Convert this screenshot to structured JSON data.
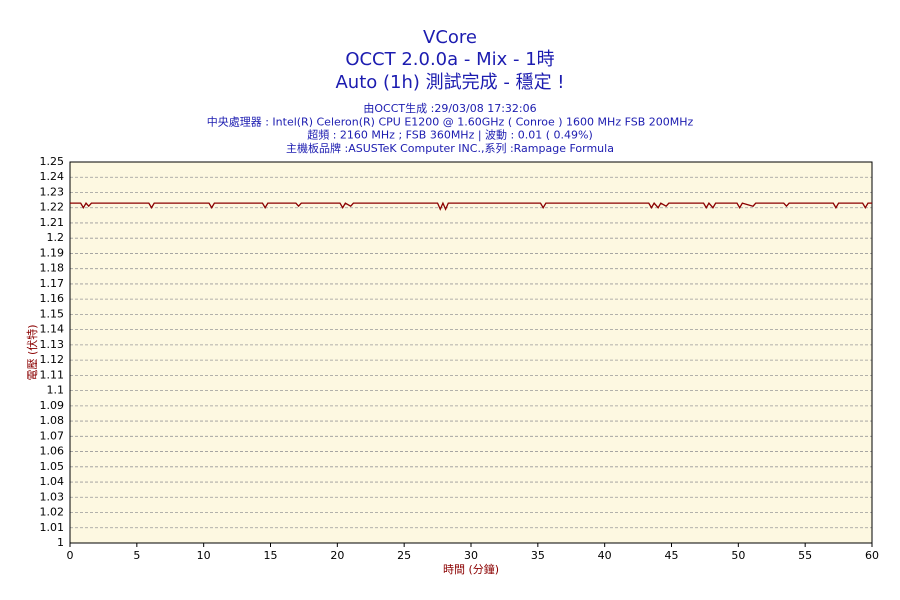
{
  "chart_data": {
    "type": "line",
    "title": "VCore",
    "title_lines": [
      "OCCT 2.0.0a - Mix - 1時",
      "Auto (1h) 測試完成 - 穩定 !"
    ],
    "subtitle_lines": [
      "由OCCT生成 :29/03/08 17:32:06",
      "中央處理器 : Intel(R) Celeron(R) CPU E1200 @ 1.60GHz ( Conroe ) 1600 MHz FSB 200MHz",
      "超頻 : 2160 MHz ; FSB 360MHz | 波動 : 0.01 ( 0.49%)",
      "主機板品牌 :ASUSTeK Computer INC.,系列 :Rampage Formula"
    ],
    "x_label": "時間 (分鐘)",
    "y_label": "電壓 (伏特)",
    "xlim": [
      0,
      60
    ],
    "xticks": [
      0,
      5,
      10,
      15,
      20,
      25,
      30,
      35,
      40,
      45,
      50,
      55,
      60
    ],
    "ylim": [
      1,
      1.25
    ],
    "yticks": [
      1,
      1.01,
      1.02,
      1.03,
      1.04,
      1.05,
      1.06,
      1.07,
      1.08,
      1.09,
      1.1,
      1.11,
      1.12,
      1.13,
      1.14,
      1.15,
      1.16,
      1.17,
      1.18,
      1.19,
      1.2,
      1.21,
      1.22,
      1.23,
      1.24,
      1.25
    ],
    "grid": true,
    "series": [
      {
        "color": "#8b0000",
        "x": [
          0,
          0.8,
          1,
          1.2,
          1.4,
          1.6,
          5.9,
          6.1,
          6.3,
          10.4,
          10.6,
          10.8,
          14.4,
          14.6,
          14.8,
          16.9,
          17.1,
          17.3,
          20.2,
          20.4,
          20.6,
          21.0,
          21.2,
          27.5,
          27.7,
          27.9,
          28.1,
          28.3,
          35.2,
          35.4,
          35.6,
          43.3,
          43.5,
          43.7,
          44.0,
          44.2,
          44.6,
          44.8,
          47.4,
          47.6,
          47.8,
          48.1,
          48.3,
          49.9,
          50.1,
          50.3,
          51.1,
          51.3,
          53.4,
          53.6,
          53.8,
          57.1,
          57.3,
          57.5,
          59.3,
          59.5,
          59.7,
          60
        ],
        "values": [
          1.223,
          1.223,
          1.22,
          1.223,
          1.221,
          1.223,
          1.223,
          1.22,
          1.223,
          1.223,
          1.22,
          1.223,
          1.223,
          1.22,
          1.223,
          1.223,
          1.221,
          1.223,
          1.223,
          1.22,
          1.223,
          1.221,
          1.223,
          1.223,
          1.219,
          1.223,
          1.219,
          1.223,
          1.223,
          1.22,
          1.223,
          1.223,
          1.22,
          1.223,
          1.22,
          1.223,
          1.221,
          1.223,
          1.223,
          1.22,
          1.223,
          1.22,
          1.223,
          1.223,
          1.22,
          1.223,
          1.221,
          1.223,
          1.223,
          1.221,
          1.223,
          1.223,
          1.22,
          1.223,
          1.223,
          1.22,
          1.223,
          1.223
        ]
      }
    ]
  }
}
